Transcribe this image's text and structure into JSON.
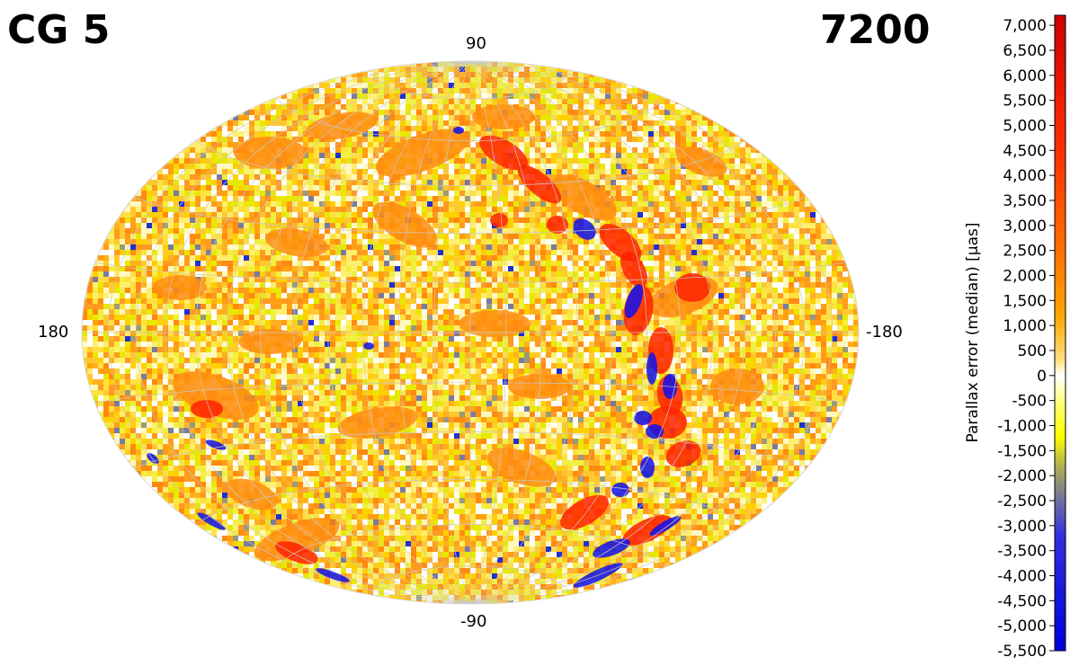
{
  "header": {
    "left_title": "CG 5",
    "right_title": "7200"
  },
  "map": {
    "projection": "hammer-aitoff",
    "grid": true,
    "labels": {
      "top": "90",
      "bottom": "-90",
      "left": "180",
      "right": "-180"
    },
    "features": [
      {
        "kind": "band",
        "color": "#ff2800",
        "lon": -26,
        "lat": 45,
        "desc": "red patch north"
      },
      {
        "kind": "band",
        "color": "#2222ff",
        "lon": -40,
        "lat": 36,
        "desc": "blue patch north"
      },
      {
        "kind": "band",
        "color": "#ff2800",
        "lon": -55,
        "lat": -20,
        "desc": "red patches south-east"
      },
      {
        "kind": "band",
        "color": "#1010ee",
        "lon": -45,
        "lat": -70,
        "desc": "blue streaks south"
      }
    ]
  },
  "colorbar": {
    "title": "Parallax error (median) [µas]",
    "min": -5500,
    "max": 7200,
    "colors": {
      "low": "#0000d8",
      "mid_low": "#ffff00",
      "zero": "#ffffff",
      "mid_high": "#ffa500",
      "high": "#cc0000"
    },
    "ticks": [
      "7,000",
      "6,500",
      "6,000",
      "5,500",
      "5,000",
      "4,500",
      "4,000",
      "3,500",
      "3,000",
      "2,500",
      "2,000",
      "1,500",
      "1,000",
      "500",
      "0",
      "-500",
      "-1,000",
      "-1,500",
      "-2,000",
      "-2,500",
      "-3,000",
      "-3,500",
      "-4,000",
      "-4,500",
      "-5,000",
      "-5,500"
    ],
    "tick_values": [
      7000,
      6500,
      6000,
      5500,
      5000,
      4500,
      4000,
      3500,
      3000,
      2500,
      2000,
      1500,
      1000,
      500,
      0,
      -500,
      -1000,
      -1500,
      -2000,
      -2500,
      -3000,
      -3500,
      -4000,
      -4500,
      -5000,
      -5500
    ]
  }
}
